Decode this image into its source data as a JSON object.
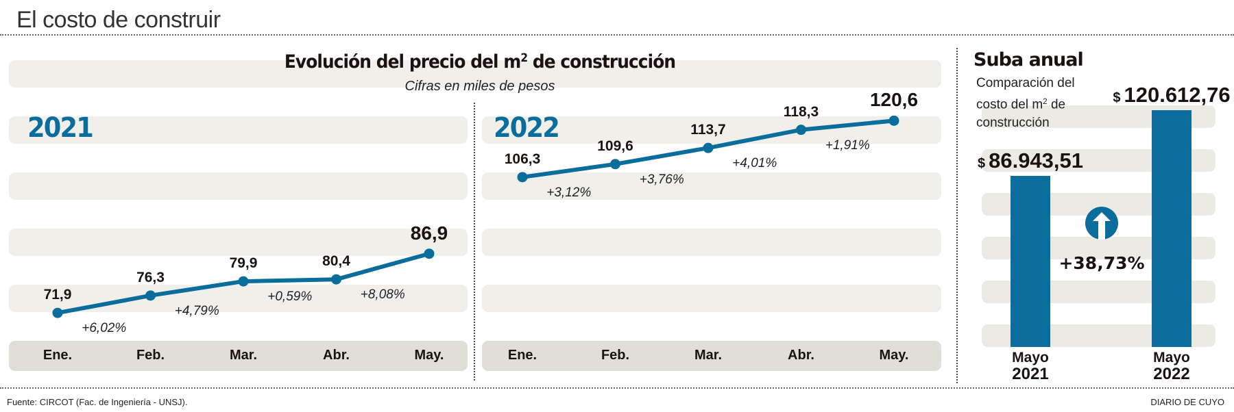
{
  "page_title": "El costo de construir",
  "footer": {
    "source": "Fuente: CIRCOT (Fac. de Ingeniería - UNSJ).",
    "credit": "DIARIO DE CUYO"
  },
  "colors": {
    "accent": "#0a6d9c",
    "stripe": "#f0efea",
    "axis_band": "#dfdfd6",
    "text": "#1a1311"
  },
  "chart_data": [
    {
      "type": "line",
      "title": "Evolución del precio del m² de construcción",
      "title_parts": {
        "before": "Evolución del precio del m",
        "sup": "2",
        "after": " de construcción"
      },
      "subtitle": "Cifras en miles de pesos",
      "panel_label": "2021",
      "categories": [
        "Ene.",
        "Feb.",
        "Mar.",
        "Abr.",
        "May."
      ],
      "values": [
        71.9,
        76.3,
        79.9,
        80.4,
        86.9
      ],
      "value_labels": [
        "71,9",
        "76,3",
        "79,9",
        "80,4",
        "86,9"
      ],
      "change_labels": [
        "+6,02%",
        "+4,79%",
        "+0,59%",
        "+8,08%"
      ],
      "xlabel": "",
      "ylabel": "",
      "ylim": [
        65,
        125
      ],
      "grid": false
    },
    {
      "type": "line",
      "panel_label": "2022",
      "categories": [
        "Ene.",
        "Feb.",
        "Mar.",
        "Abr.",
        "May."
      ],
      "values": [
        106.3,
        109.6,
        113.7,
        118.3,
        120.6
      ],
      "value_labels": [
        "106,3",
        "109,6",
        "113,7",
        "118,3",
        "120,6"
      ],
      "change_labels": [
        "+3,12%",
        "+3,76%",
        "+4,01%",
        "+1,91%"
      ],
      "xlabel": "",
      "ylabel": "",
      "ylim": [
        65,
        125
      ],
      "grid": false
    },
    {
      "type": "bar",
      "title": "Suba anual",
      "note_parts": {
        "line1": "Comparación del",
        "line2_before": "costo del m",
        "line2_sup": "2",
        "line2_after": " de",
        "line3": "construcción"
      },
      "categories": [
        {
          "month": "Mayo",
          "year": "2021"
        },
        {
          "month": "Mayo",
          "year": "2022"
        }
      ],
      "values": [
        86943.51,
        120612.76
      ],
      "value_labels": [
        "86.943,51",
        "120.612,76"
      ],
      "currency": "$",
      "change_label": "+38,73%",
      "change_icon": "arrow-up-circle-icon",
      "ylim": [
        0,
        125000
      ]
    }
  ]
}
